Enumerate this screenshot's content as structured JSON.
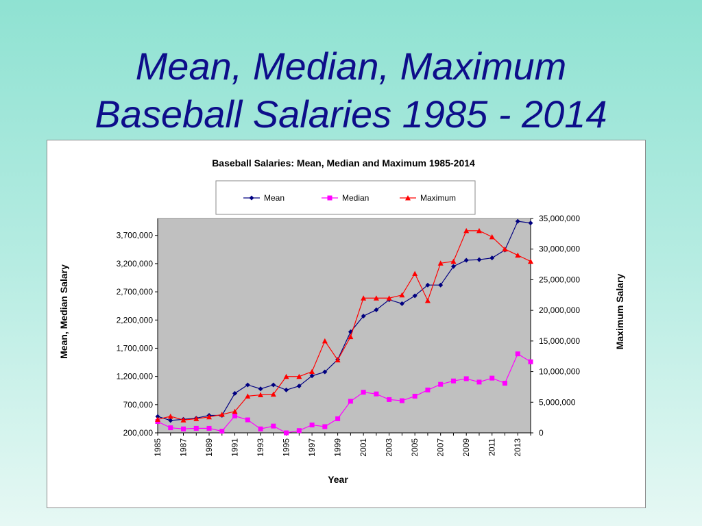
{
  "slide": {
    "title_line1": "Mean, Median, Maximum",
    "title_line2": "Baseball Salaries 1985 - 2014"
  },
  "chart_data": {
    "type": "line",
    "title": "Baseball Salaries: Mean, Median and Maximum 1985-2014",
    "xlabel": "Year",
    "ylabel_left": "Mean, Median Salary",
    "ylabel_right": "Maximum Salary",
    "x": [
      1985,
      1986,
      1987,
      1988,
      1989,
      1990,
      1991,
      1992,
      1993,
      1994,
      1995,
      1996,
      1997,
      1998,
      1999,
      2000,
      2001,
      2002,
      2003,
      2004,
      2005,
      2006,
      2007,
      2008,
      2009,
      2010,
      2011,
      2012,
      2013,
      2014
    ],
    "x_tick_labels": [
      "1985",
      "1987",
      "1989",
      "1991",
      "1993",
      "1995",
      "1997",
      "1999",
      "2001",
      "2003",
      "2005",
      "2007",
      "2009",
      "2011",
      "2013"
    ],
    "y_left_ticks": [
      "200,000",
      "700,000",
      "1,200,000",
      "1,700,000",
      "2,200,000",
      "2,700,000",
      "3,200,000",
      "3,700,000"
    ],
    "y_left_range": [
      200000,
      4000000
    ],
    "y_right_ticks": [
      "0",
      "5,000,000",
      "10,000,000",
      "15,000,000",
      "20,000,000",
      "25,000,000",
      "30,000,000",
      "35,000,000"
    ],
    "y_right_range": [
      0,
      35000000
    ],
    "legend_position": "top",
    "plot_background": "#c0c0c0",
    "series": [
      {
        "name": "Mean",
        "axis": "left",
        "color": "#000080",
        "marker": "diamond",
        "values": [
          490000,
          420000,
          440000,
          460000,
          510000,
          510000,
          900000,
          1050000,
          980000,
          1050000,
          960000,
          1030000,
          1210000,
          1280000,
          1500000,
          1990000,
          2270000,
          2380000,
          2560000,
          2490000,
          2630000,
          2820000,
          2820000,
          3150000,
          3260000,
          3270000,
          3300000,
          3440000,
          3950000,
          3920000
        ]
      },
      {
        "name": "Median",
        "axis": "left",
        "color": "#ff00ff",
        "marker": "square",
        "values": [
          400000,
          290000,
          270000,
          280000,
          280000,
          230000,
          500000,
          430000,
          270000,
          320000,
          200000,
          240000,
          340000,
          310000,
          450000,
          760000,
          920000,
          890000,
          790000,
          770000,
          850000,
          960000,
          1060000,
          1120000,
          1160000,
          1100000,
          1170000,
          1080000,
          1600000,
          1460000
        ]
      },
      {
        "name": "Maximum",
        "axis": "right",
        "color": "#ff0000",
        "marker": "triangle",
        "values": [
          2200000,
          2700000,
          2100000,
          2300000,
          2600000,
          3000000,
          3500000,
          6000000,
          6200000,
          6300000,
          9200000,
          9200000,
          10000000,
          15000000,
          11900000,
          15700000,
          22000000,
          22000000,
          22000000,
          22500000,
          26000000,
          21600000,
          27700000,
          28000000,
          33000000,
          33000000,
          32000000,
          30000000,
          29000000,
          28000000
        ]
      }
    ]
  }
}
